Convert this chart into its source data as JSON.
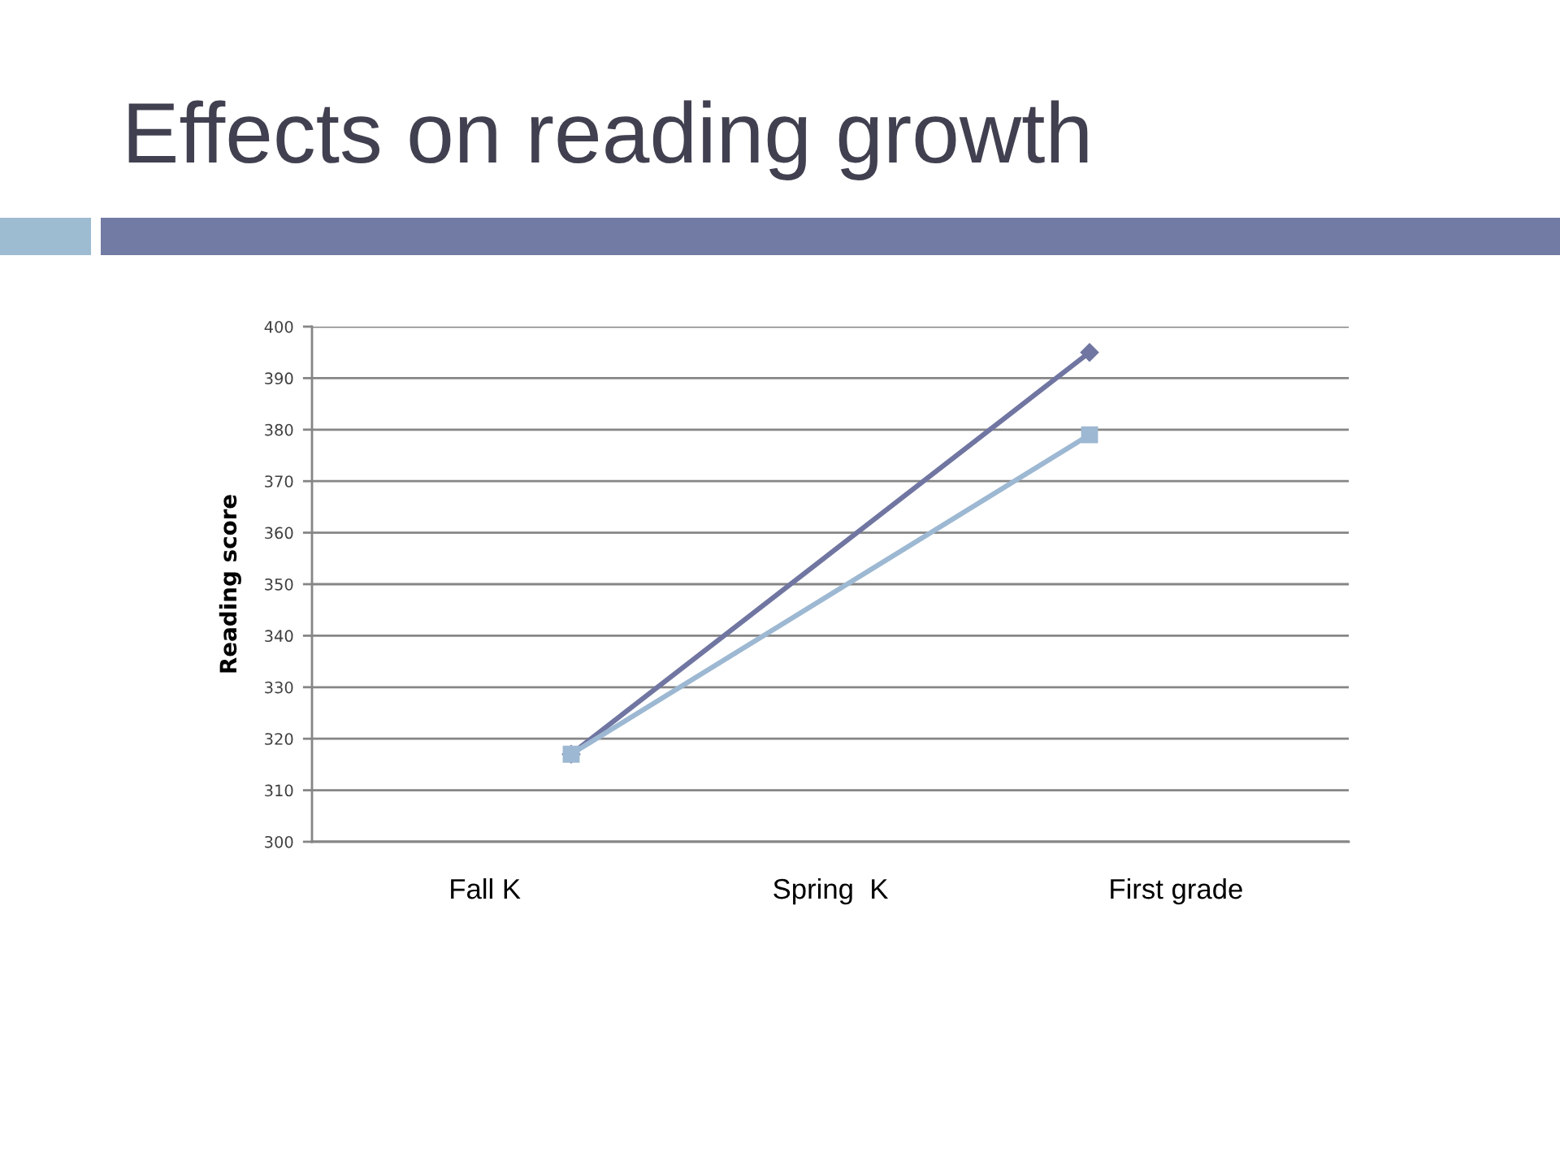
{
  "chart_data": {
    "type": "line",
    "title": "Effects on reading growth",
    "ylabel": "Reading score",
    "categories": [
      null,
      null
    ],
    "annotations": [
      "Fall K",
      "Spring  K",
      "First grade"
    ],
    "ylim": [
      300,
      400
    ],
    "yticks": [
      300,
      310,
      320,
      330,
      340,
      350,
      360,
      370,
      380,
      390,
      400
    ],
    "grid": "y",
    "line_style": "solid",
    "series": [
      {
        "color": "#7076a1",
        "marker": "diamond",
        "values": [
          317,
          395
        ]
      },
      {
        "color": "#9db8d2",
        "marker": "square",
        "values": [
          317,
          379
        ]
      }
    ]
  }
}
